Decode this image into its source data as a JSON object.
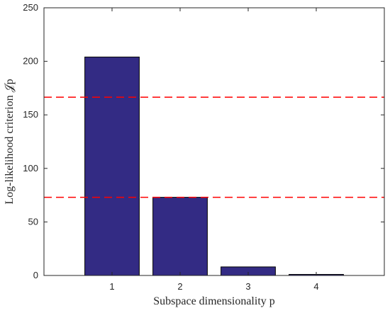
{
  "chart_data": {
    "type": "bar",
    "categories": [
      "1",
      "2",
      "3",
      "4"
    ],
    "values": [
      204,
      73,
      8,
      1
    ],
    "xlabel": "Subspace dimensionality p",
    "ylabel": "Log-likelihood criterion 𝒥p",
    "ylim": [
      0,
      250
    ],
    "yticks": [
      0,
      50,
      100,
      150,
      200,
      250
    ],
    "thresholds": [
      166.5,
      73
    ],
    "bar_color": "#332b84",
    "threshold_color": "#ff0000",
    "grid": false,
    "legend": "none"
  }
}
